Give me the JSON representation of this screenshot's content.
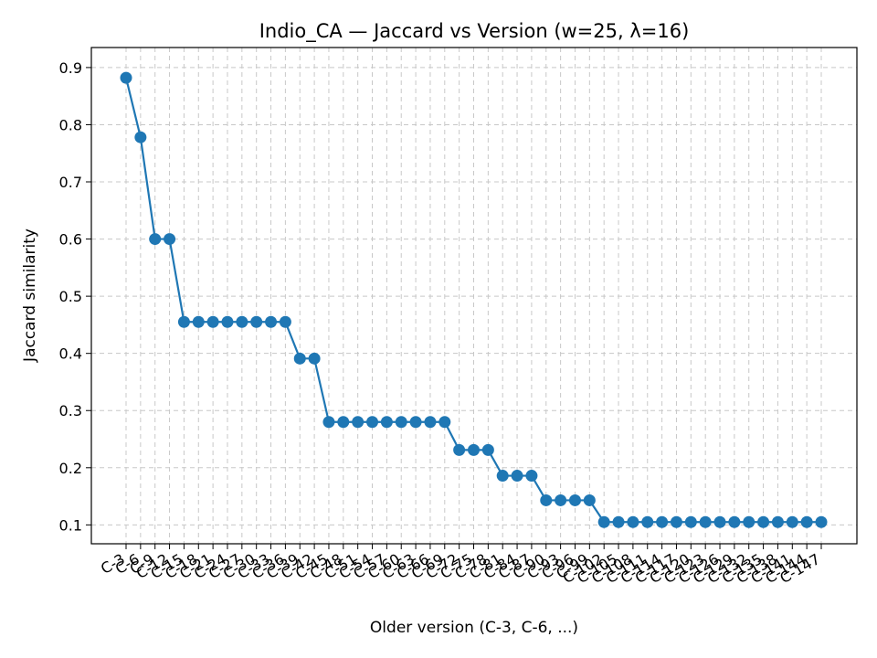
{
  "chart_data": {
    "type": "line",
    "title": "Indio_CA — Jaccard vs Version (w=25, λ=16)",
    "xlabel": "Older version (C-3, C-6, ...)",
    "ylabel": "Jaccard similarity",
    "ylim": [
      0.067,
      0.935
    ],
    "yticks": [
      0.1,
      0.2,
      0.3,
      0.4,
      0.5,
      0.6,
      0.7,
      0.8,
      0.9
    ],
    "ytick_labels": [
      "0.1",
      "0.2",
      "0.3",
      "0.4",
      "0.5",
      "0.6",
      "0.7",
      "0.8",
      "0.9"
    ],
    "grid": true,
    "color": "#1f77b4",
    "categories": [
      "C-3",
      "C-6",
      "C-9",
      "C-12",
      "C-15",
      "C-18",
      "C-21",
      "C-24",
      "C-27",
      "C-30",
      "C-33",
      "C-36",
      "C-39",
      "C-42",
      "C-45",
      "C-48",
      "C-51",
      "C-54",
      "C-57",
      "C-60",
      "C-63",
      "C-66",
      "C-69",
      "C-72",
      "C-75",
      "C-78",
      "C-81",
      "C-84",
      "C-87",
      "C-90",
      "C-93",
      "C-96",
      "C-99",
      "C-102",
      "C-105",
      "C-108",
      "C-111",
      "C-114",
      "C-117",
      "C-120",
      "C-123",
      "C-126",
      "C-129",
      "C-132",
      "C-135",
      "C-138",
      "C-141",
      "C-144",
      "C-147"
    ],
    "values": [
      0.882,
      0.778,
      0.6,
      0.6,
      0.455,
      0.455,
      0.455,
      0.455,
      0.455,
      0.455,
      0.455,
      0.455,
      0.391,
      0.391,
      0.28,
      0.28,
      0.28,
      0.28,
      0.28,
      0.28,
      0.28,
      0.28,
      0.28,
      0.231,
      0.231,
      0.231,
      0.186,
      0.186,
      0.186,
      0.143,
      0.143,
      0.143,
      0.143,
      0.105,
      0.105,
      0.105,
      0.105,
      0.105,
      0.105,
      0.105,
      0.105,
      0.105,
      0.105,
      0.105,
      0.105,
      0.105,
      0.105,
      0.105,
      0.105
    ]
  }
}
